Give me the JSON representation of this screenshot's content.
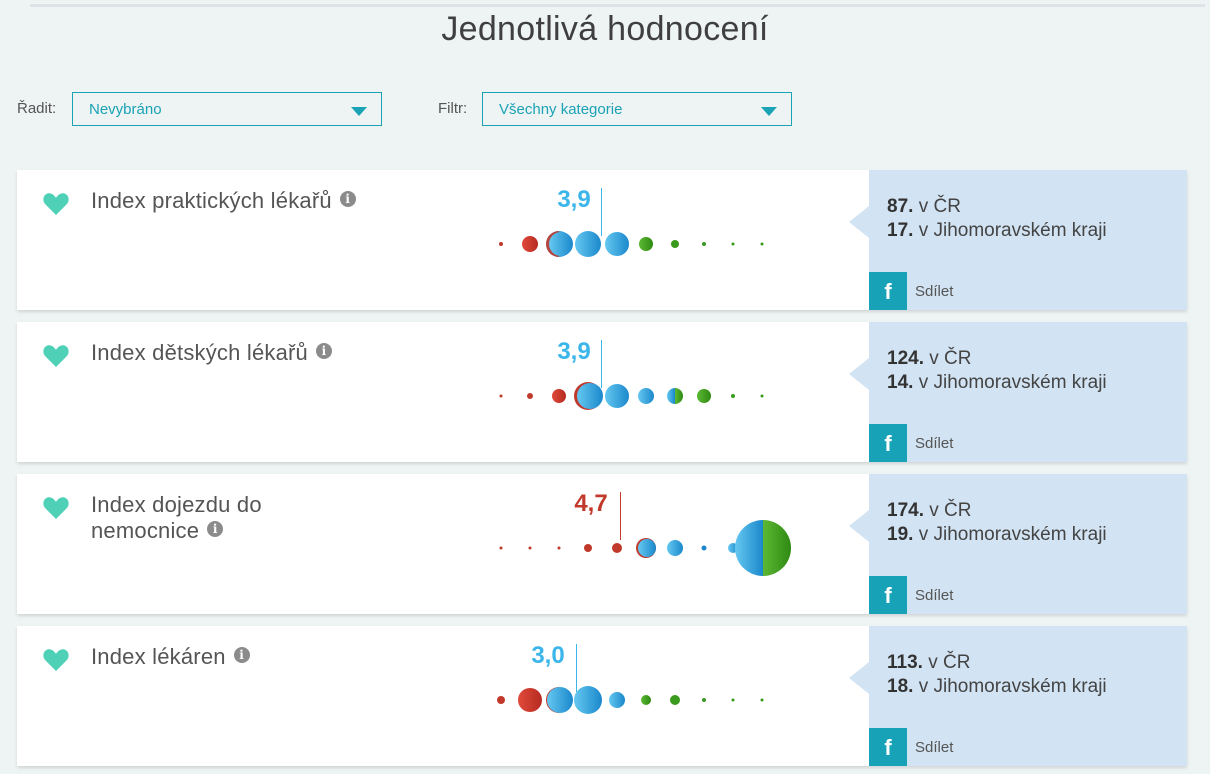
{
  "page": {
    "title": "Jednotlivá hodnocení"
  },
  "controls": {
    "sort": {
      "label": "Řadit:",
      "value": "Nevybráno"
    },
    "filter": {
      "label": "Filtr:",
      "value": "Všechny kategorie"
    }
  },
  "colors": {
    "accent": "#1aa3b4",
    "heart": "#4fd1b7",
    "score_good": "#3cb6ea",
    "score_bad": "#c0392b",
    "panel": "#d2e3f3"
  },
  "icons": {
    "favorite": "heart-icon",
    "info": "info-icon",
    "share": "facebook-icon",
    "dropdown": "chevron-down-icon"
  },
  "cards": [
    {
      "title": "Index praktických lékařů",
      "score": "3,9",
      "rank_cr": "87.",
      "rank_cr_text": "v ČR",
      "rank_region": "17.",
      "rank_region_text": "v Jihomoravském kraji",
      "share": "Sdílet"
    },
    {
      "title": "Index dětských lékařů",
      "score": "3,9",
      "rank_cr": "124.",
      "rank_cr_text": "v ČR",
      "rank_region": "14.",
      "rank_region_text": "v Jihomoravském kraji",
      "share": "Sdílet"
    },
    {
      "title_line1": "Index dojezdu do",
      "title_line2": "nemocnice",
      "score": "4,7",
      "rank_cr": "174.",
      "rank_cr_text": "v ČR",
      "rank_region": "19.",
      "rank_region_text": "v Jihomoravském kraji",
      "share": "Sdílet"
    },
    {
      "title": "Index lékáren",
      "score": "3,0",
      "rank_cr": "113.",
      "rank_cr_text": "v ČR",
      "rank_region": "18.",
      "rank_region_text": "v Jihomoravském kraji",
      "share": "Sdílet"
    }
  ]
}
